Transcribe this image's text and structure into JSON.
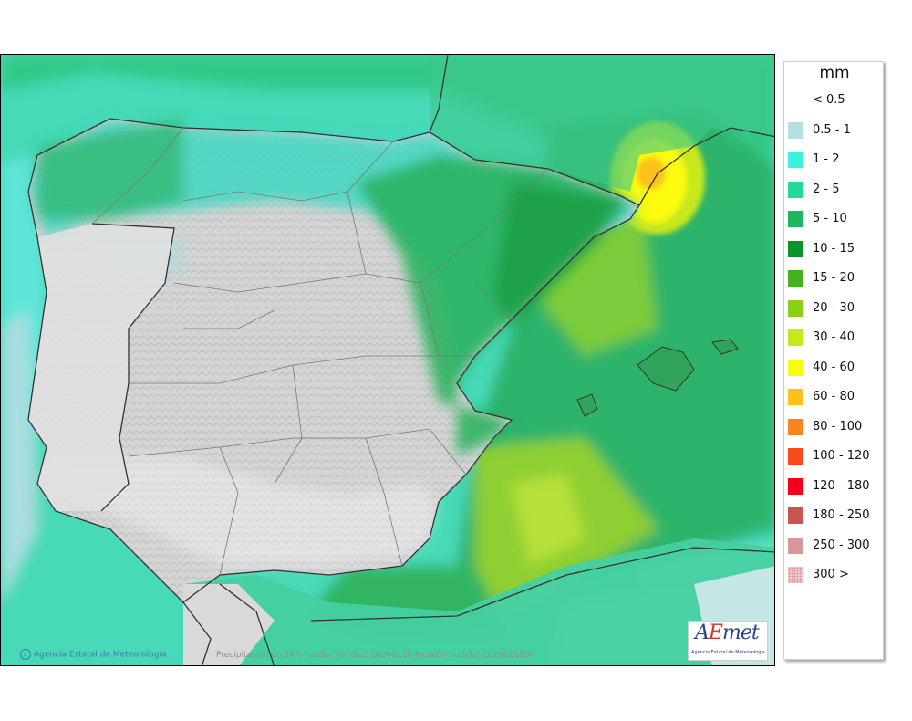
{
  "legend": {
    "unit": "mm",
    "items": [
      {
        "label": "< 0.5",
        "color": ""
      },
      {
        "label": "0.5 - 1",
        "color": "#b4e0e4"
      },
      {
        "label": "1 - 2",
        "color": "#3cf0df"
      },
      {
        "label": "2 - 5",
        "color": "#23d89b"
      },
      {
        "label": "5 - 10",
        "color": "#1fb55c"
      },
      {
        "label": "10 - 15",
        "color": "#0c9526"
      },
      {
        "label": "15 - 20",
        "color": "#44b21c"
      },
      {
        "label": "20 - 30",
        "color": "#8ad01a"
      },
      {
        "label": "30 - 40",
        "color": "#c7e81c"
      },
      {
        "label": "40 - 60",
        "color": "#fbfb0f"
      },
      {
        "label": "60 - 80",
        "color": "#fcc11c"
      },
      {
        "label": "80 - 100",
        "color": "#fb851c"
      },
      {
        "label": "100 - 120",
        "color": "#fb4a1c"
      },
      {
        "label": "120 - 180",
        "color": "#f4001c"
      },
      {
        "label": "180 - 250",
        "color": "#c95454"
      },
      {
        "label": "250 - 300",
        "color": "#d89696"
      },
      {
        "label": "300 >",
        "color": "#f3d8d8",
        "dotted": true
      }
    ]
  },
  "footer": {
    "copyright_glyph": "c",
    "copyright": "Agencia Estatal de Meteorología",
    "caption": "Precipitación en 24 h media. Validez: 20260119 Pasada modelo: 2026011800"
  },
  "logo": {
    "word_a": "A",
    "word_e": "E",
    "word_rest": "met",
    "subtitle": "Agencia Estatal de Meteorología"
  },
  "colors": {
    "sea_base": "#47d9b8",
    "land_dry": "#d6d6d6",
    "country_border": "#333333",
    "region_border": "#888888"
  }
}
